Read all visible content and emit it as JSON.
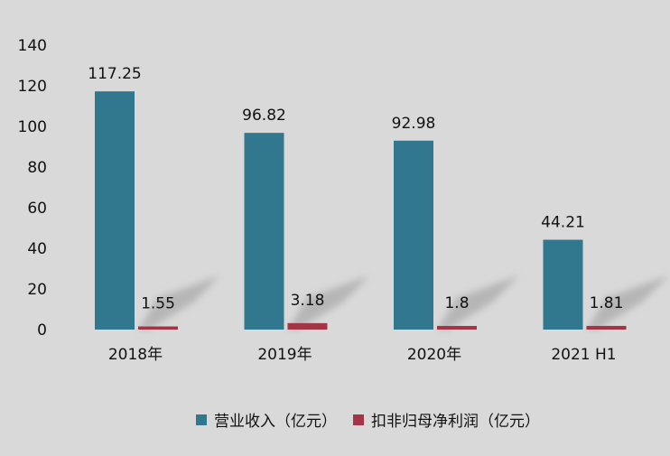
{
  "chart_data": {
    "type": "bar",
    "title": "",
    "xlabel": "",
    "ylabel": "",
    "categories": [
      "2018年",
      "2019年",
      "2020年",
      "2021 H1"
    ],
    "series": [
      {
        "name": "营业收入（亿元）",
        "values": [
          117.25,
          96.82,
          92.98,
          44.21
        ],
        "color": "#31788e",
        "labels": [
          "117.25",
          "96.82",
          "92.98",
          "44.21"
        ]
      },
      {
        "name": "扣非归母净利润（亿元）",
        "values": [
          1.55,
          3.18,
          1.8,
          1.81
        ],
        "color": "#a33546",
        "labels": [
          "1.55",
          "3.18",
          "1.8",
          "1.81"
        ]
      }
    ],
    "ylim": [
      0,
      140
    ],
    "yticks": [
      "0",
      "20",
      "40",
      "60",
      "80",
      "100",
      "120",
      "140"
    ],
    "grid": false,
    "legend_position": "bottom"
  }
}
